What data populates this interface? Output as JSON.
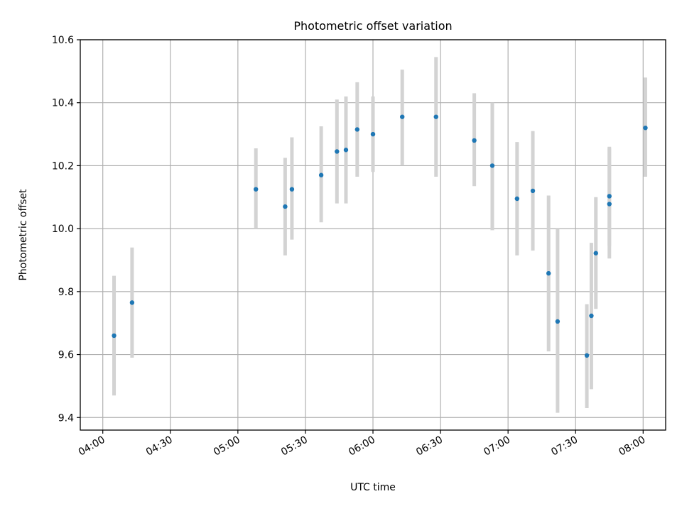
{
  "chart_data": {
    "type": "scatter",
    "title": "Photometric offset variation",
    "xlabel": "UTC time",
    "ylabel": "Photometric offset",
    "xlim": [
      "03:50",
      "08:10"
    ],
    "ylim": [
      9.36,
      10.6
    ],
    "grid": true,
    "x_ticks": [
      "04:00",
      "04:30",
      "05:00",
      "05:30",
      "06:00",
      "06:30",
      "07:00",
      "07:30",
      "08:00"
    ],
    "y_ticks": [
      "9.4",
      "9.6",
      "9.8",
      "10.0",
      "10.2",
      "10.4",
      "10.6"
    ],
    "series": [
      {
        "marker_color": "#1f77b4",
        "errorbar_color": "#d3d3d3",
        "points": [
          {
            "x": "04:05",
            "y": 9.66,
            "ylow": 9.47,
            "yhigh": 9.85
          },
          {
            "x": "04:13",
            "y": 9.765,
            "ylow": 9.59,
            "yhigh": 9.94
          },
          {
            "x": "05:08",
            "y": 10.125,
            "ylow": 10.0,
            "yhigh": 10.255
          },
          {
            "x": "05:21",
            "y": 10.07,
            "ylow": 9.915,
            "yhigh": 10.225
          },
          {
            "x": "05:24",
            "y": 10.125,
            "ylow": 9.965,
            "yhigh": 10.29
          },
          {
            "x": "05:37",
            "y": 10.17,
            "ylow": 10.02,
            "yhigh": 10.325
          },
          {
            "x": "05:44",
            "y": 10.245,
            "ylow": 10.08,
            "yhigh": 10.41
          },
          {
            "x": "05:48",
            "y": 10.25,
            "ylow": 10.08,
            "yhigh": 10.42
          },
          {
            "x": "05:53",
            "y": 10.315,
            "ylow": 10.165,
            "yhigh": 10.465
          },
          {
            "x": "06:00",
            "y": 10.3,
            "ylow": 10.18,
            "yhigh": 10.42
          },
          {
            "x": "06:13",
            "y": 10.355,
            "ylow": 10.2,
            "yhigh": 10.505
          },
          {
            "x": "06:28",
            "y": 10.355,
            "ylow": 10.165,
            "yhigh": 10.545
          },
          {
            "x": "06:45",
            "y": 10.28,
            "ylow": 10.135,
            "yhigh": 10.43
          },
          {
            "x": "06:53",
            "y": 10.2,
            "ylow": 9.995,
            "yhigh": 10.4
          },
          {
            "x": "07:04",
            "y": 10.095,
            "ylow": 9.915,
            "yhigh": 10.275
          },
          {
            "x": "07:11",
            "y": 10.12,
            "ylow": 9.93,
            "yhigh": 10.31
          },
          {
            "x": "07:18",
            "y": 9.858,
            "ylow": 9.61,
            "yhigh": 10.105
          },
          {
            "x": "07:22",
            "y": 9.705,
            "ylow": 9.415,
            "yhigh": 10.0
          },
          {
            "x": "07:35",
            "y": 9.597,
            "ylow": 9.43,
            "yhigh": 9.76
          },
          {
            "x": "07:37",
            "y": 9.723,
            "ylow": 9.49,
            "yhigh": 9.955
          },
          {
            "x": "07:39",
            "y": 9.922,
            "ylow": 9.745,
            "yhigh": 10.1
          },
          {
            "x": "07:45",
            "y": 10.103,
            "ylow": 9.945,
            "yhigh": 10.26
          },
          {
            "x": "07:45",
            "y": 10.078,
            "ylow": 9.905,
            "yhigh": 10.255
          },
          {
            "x": "08:01",
            "y": 10.32,
            "ylow": 10.165,
            "yhigh": 10.48
          }
        ]
      }
    ]
  }
}
